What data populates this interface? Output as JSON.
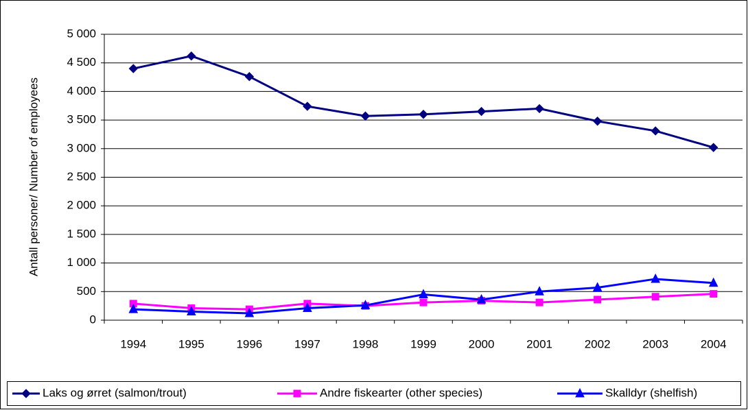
{
  "chart_data": {
    "type": "line",
    "y_label": "Antall personer/ Number of employees",
    "categories": [
      "1994",
      "1995",
      "1996",
      "1997",
      "1998",
      "1999",
      "2000",
      "2001",
      "2002",
      "2003",
      "2004"
    ],
    "series": [
      {
        "name": "Laks og ørret (salmon/trout)",
        "color": "#000080",
        "marker": "diamond",
        "values": [
          4400,
          4620,
          4260,
          3740,
          3570,
          3600,
          3650,
          3700,
          3480,
          3310,
          3020
        ]
      },
      {
        "name": "Andre fiskearter (other species)",
        "color": "#ff00ff",
        "marker": "square",
        "values": [
          290,
          210,
          190,
          290,
          250,
          310,
          340,
          310,
          360,
          410,
          460
        ]
      },
      {
        "name": "Skalldyr (shelfish)",
        "color": "#0000ff",
        "marker": "triangle",
        "values": [
          190,
          150,
          120,
          210,
          260,
          450,
          360,
          500,
          570,
          720,
          650
        ]
      }
    ],
    "ylim": [
      0,
      5000
    ],
    "yticks": [
      0,
      500,
      {
        "value": 1000,
        "label": "1 000"
      },
      {
        "value": 1500,
        "label": "1 500"
      },
      {
        "value": 2000,
        "label": "2 000"
      },
      {
        "value": 2500,
        "label": "2 500"
      },
      {
        "value": 3000,
        "label": "3 000"
      },
      {
        "value": 3500,
        "label": "3 500"
      },
      {
        "value": 4000,
        "label": "4 000"
      },
      {
        "value": 4500,
        "label": "4 500"
      },
      {
        "value": 5000,
        "label": "5 000"
      }
    ],
    "grid": true,
    "legend": "bottom"
  }
}
